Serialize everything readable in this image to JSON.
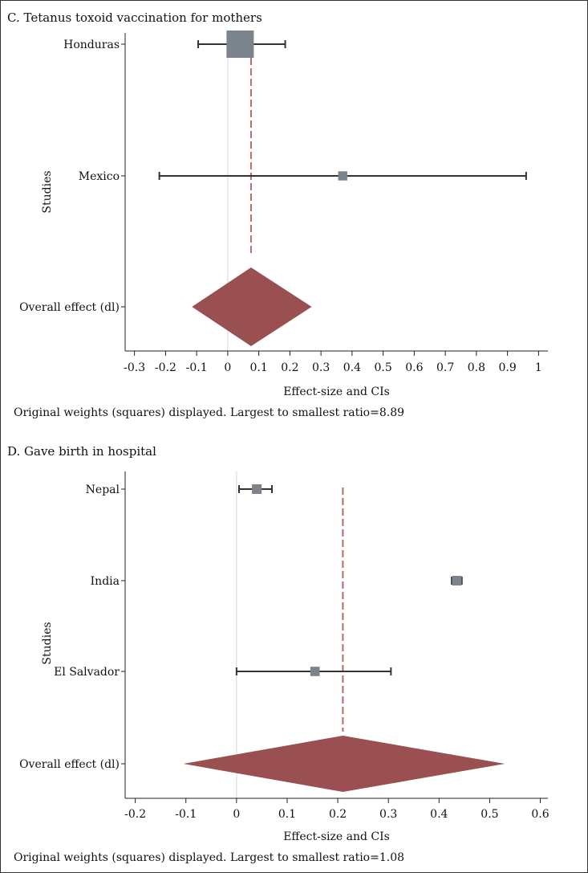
{
  "colors": {
    "square": "#7b838c",
    "ci_line": "#333333",
    "diamond": "#9a5050",
    "overall_line": "#b86a6a",
    "zero_line": "#dddddd",
    "axis": "#222222"
  },
  "chart_data": [
    {
      "type": "forest",
      "title": "C. Tetanus toxoid vaccination for mothers",
      "xlabel": "Effect-size and CIs",
      "ylabel": "Studies",
      "xlim": [
        -0.33,
        1.03
      ],
      "ticks": [
        -0.3,
        -0.2,
        -0.1,
        0,
        0.1,
        0.2,
        0.3,
        0.4,
        0.5,
        0.6,
        0.7,
        0.8,
        0.9,
        1
      ],
      "tick_labels": [
        "-0.3",
        "-0.2",
        "-0.1",
        "0",
        "0.1",
        "0.2",
        "0.3",
        "0.4",
        "0.5",
        "0.6",
        "0.7",
        "0.8",
        "0.9",
        "1"
      ],
      "studies": [
        {
          "label": "Honduras",
          "effect": 0.04,
          "ci_low": -0.095,
          "ci_high": 0.185,
          "weight": 0.899
        },
        {
          "label": "Mexico",
          "effect": 0.37,
          "ci_low": -0.22,
          "ci_high": 0.96,
          "weight": 0.101
        }
      ],
      "overall": {
        "label": "Overall effect (dl)",
        "effect": 0.075,
        "ci_low": -0.115,
        "ci_high": 0.27
      },
      "footnote": "Original weights (squares) displayed. Largest to smallest ratio=8.89"
    },
    {
      "type": "forest",
      "title": "D. Gave birth in hospital",
      "xlabel": "Effect-size and CIs",
      "ylabel": "Studies",
      "xlim": [
        -0.22,
        0.615
      ],
      "ticks": [
        -0.2,
        -0.1,
        0,
        0.1,
        0.2,
        0.3,
        0.4,
        0.5,
        0.6
      ],
      "tick_labels": [
        "-0.2",
        "-0.1",
        "0",
        "0.1",
        "0.2",
        "0.3",
        "0.4",
        "0.5",
        "0.6"
      ],
      "studies": [
        {
          "label": "Nepal",
          "effect": 0.04,
          "ci_low": 0.005,
          "ci_high": 0.07,
          "weight": 0.34
        },
        {
          "label": "India",
          "effect": 0.435,
          "ci_low": 0.425,
          "ci_high": 0.445,
          "weight": 0.34
        },
        {
          "label": "El Salvador",
          "effect": 0.155,
          "ci_low": 0.0,
          "ci_high": 0.305,
          "weight": 0.32
        }
      ],
      "overall": {
        "label": "Overall effect (dl)",
        "effect": 0.21,
        "ci_low": -0.105,
        "ci_high": 0.53
      },
      "footnote": "Original weights (squares) displayed. Largest to smallest ratio=1.08"
    }
  ]
}
